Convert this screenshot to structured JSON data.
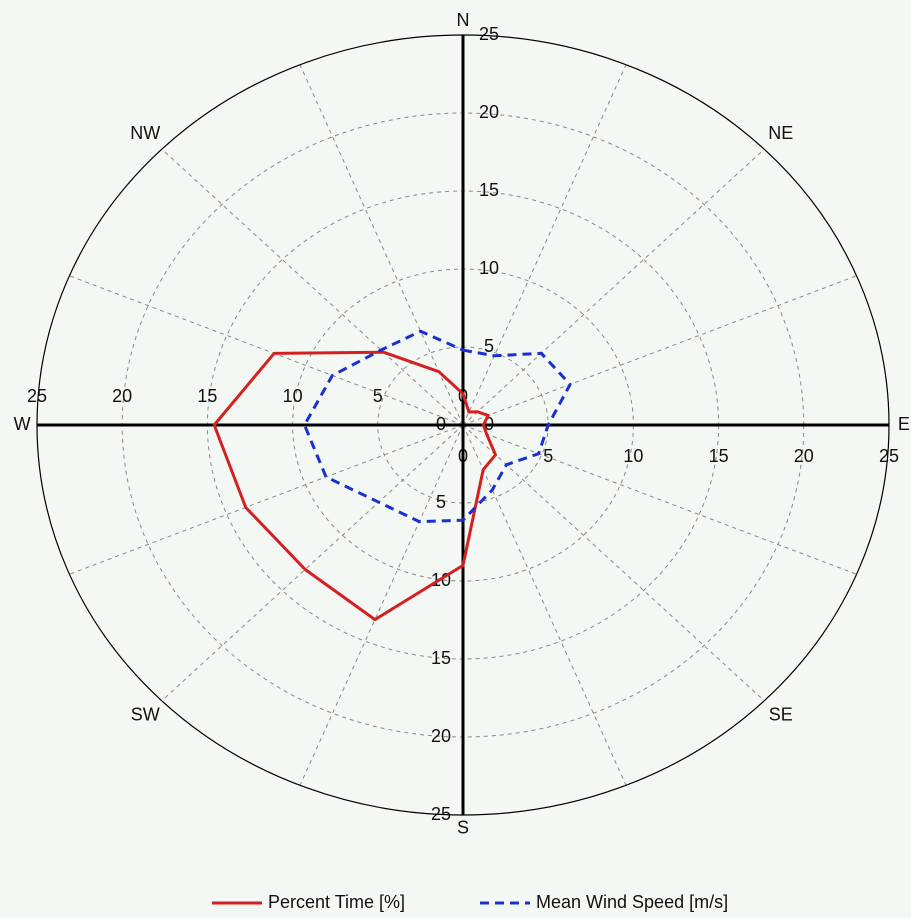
{
  "chart_data": {
    "type": "polar",
    "categories": [
      "N",
      null,
      "NE",
      null,
      "E",
      null,
      "SE",
      null,
      "S",
      null,
      "SW",
      null,
      "W",
      null,
      "NW",
      null
    ],
    "series": [
      {
        "name": "Percent Time [%]",
        "color": "#d42020",
        "dash": false,
        "values": [
          2,
          0.9,
          1.2,
          1.6,
          1.2,
          1.5,
          2.7,
          3.1,
          9,
          13.5,
          13.1,
          13.8,
          14.6,
          12,
          6.6,
          3.7
        ]
      },
      {
        "name": "Mean Wind Speed [m/s]",
        "color": "#1a2fd0",
        "dash": true,
        "values": [
          4.8,
          4.8,
          6.5,
          6.8,
          5,
          4.8,
          3.6,
          4.5,
          6.1,
          6.7,
          7,
          8.7,
          9.3,
          8.3,
          6.8,
          6.5
        ]
      }
    ],
    "rlim": [
      0,
      25
    ],
    "rticks": [
      0,
      5,
      10,
      15,
      20,
      25
    ],
    "grid": true
  }
}
